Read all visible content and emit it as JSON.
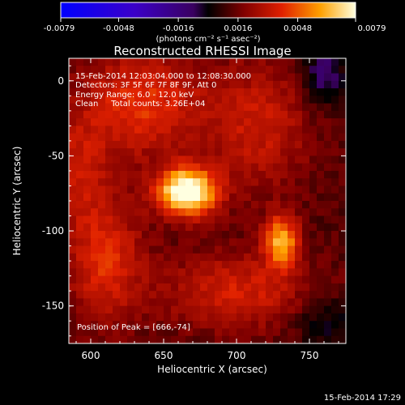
{
  "chart_data": {
    "type": "heatmap",
    "title": "Reconstructed RHESSI Image",
    "xlabel": "Heliocentric X (arcsec)",
    "ylabel": "Heliocentric Y (arcsec)",
    "xlim": [
      585,
      775
    ],
    "ylim": [
      -175,
      15
    ],
    "x_ticks": [
      600,
      650,
      700,
      750
    ],
    "y_ticks": [
      0,
      -50,
      -100,
      -150
    ],
    "colorbar": {
      "min": -0.0079,
      "max": 0.0079,
      "tick_values": [
        -0.0079,
        -0.0048,
        -0.0016,
        0.0016,
        0.0048,
        0.0079
      ],
      "tick_labels": [
        "-0.0079",
        "-0.0048",
        "-0.0016",
        "0.0016",
        "0.0048",
        "0.0079"
      ],
      "units": "(photons cm⁻² s⁻¹ asec⁻²)"
    },
    "info": [
      "15-Feb-2014 12:03:04.000 to 12:08:30.000",
      "Detectors: 3F 5F 6F 7F 8F 9F, Att 0",
      "Energy Range: 6.0 - 12.0 keV",
      "Clean     Total counts: 3.26E+04"
    ],
    "peak_label": "Position of Peak = [666,-74]",
    "sources": [
      {
        "x": 666,
        "y": -74,
        "amp": 0.0079,
        "sx": 14,
        "sy": 11
      },
      {
        "x": 731,
        "y": -107,
        "amp": 0.0052,
        "sx": 8,
        "sy": 12
      },
      {
        "x": 635,
        "y": -15,
        "amp": 0.003,
        "sx": 30,
        "sy": 25
      },
      {
        "x": 610,
        "y": -120,
        "amp": 0.0028,
        "sx": 18,
        "sy": 30
      },
      {
        "x": 700,
        "y": -140,
        "amp": 0.0025,
        "sx": 35,
        "sy": 18
      },
      {
        "x": 715,
        "y": -30,
        "amp": 0.0022,
        "sx": 25,
        "sy": 30
      },
      {
        "x": 760,
        "y": 5,
        "amp": -0.0025,
        "sx": 10,
        "sy": 15
      },
      {
        "x": 760,
        "y": -160,
        "amp": -0.0015,
        "sx": 15,
        "sy": 12
      },
      {
        "x": 590,
        "y": -60,
        "amp": 0.002,
        "sx": 15,
        "sy": 25
      }
    ]
  },
  "timestamp": "15-Feb-2014 17:29"
}
